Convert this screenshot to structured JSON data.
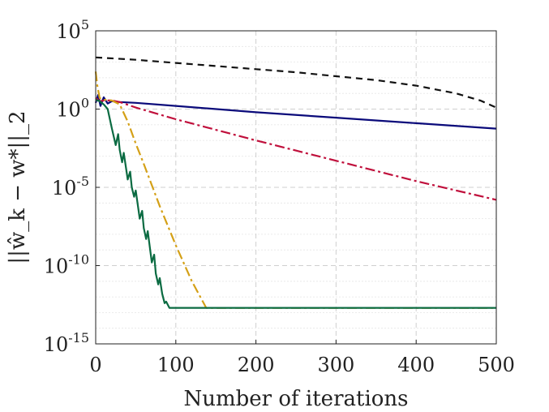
{
  "chart_data": {
    "type": "line",
    "xlabel": "Number of iterations",
    "ylabel": "||ŵ_k − w*||_2",
    "xlim": [
      0,
      500
    ],
    "ylim_exponent": [
      -15,
      5
    ],
    "yscale": "log",
    "grid": true,
    "x_ticks": [
      "0",
      "100",
      "200",
      "300",
      "400",
      "500"
    ],
    "y_ticks": [
      {
        "base": "10",
        "exp": "5",
        "value_exp": 5
      },
      {
        "base": "10",
        "exp": "0",
        "value_exp": 0
      },
      {
        "base": "10",
        "exp": "-5",
        "value_exp": -5
      },
      {
        "base": "10",
        "exp": "-10",
        "value_exp": -10
      },
      {
        "base": "10",
        "exp": "-15",
        "value_exp": -15
      }
    ],
    "series": [
      {
        "color": "#111111",
        "dash": "8,6",
        "x": [
          0,
          50,
          100,
          150,
          200,
          250,
          300,
          350,
          400,
          450,
          480,
          500
        ],
        "log10_y": [
          3.3,
          3.15,
          2.95,
          2.75,
          2.55,
          2.35,
          2.1,
          1.85,
          1.5,
          1.0,
          0.55,
          0.1
        ]
      },
      {
        "color": "#0a0a7a",
        "dash": "",
        "x": [
          0,
          3,
          6,
          10,
          15,
          20,
          30,
          50,
          100,
          200,
          300,
          400,
          500
        ],
        "log10_y": [
          0.4,
          0.9,
          0.2,
          0.75,
          0.35,
          0.5,
          0.45,
          0.4,
          0.2,
          -0.2,
          -0.55,
          -0.9,
          -1.25
        ]
      },
      {
        "color": "#c0103c",
        "dash": "12,4,3,4",
        "x": [
          0,
          5,
          10,
          20,
          30,
          50,
          100,
          200,
          300,
          400,
          500
        ],
        "log10_y": [
          0.7,
          0.5,
          0.55,
          0.55,
          0.45,
          0.1,
          -0.65,
          -2.0,
          -3.3,
          -4.6,
          -5.8
        ]
      },
      {
        "color": "#d4a017",
        "dash": "12,4,3,4",
        "x": [
          0,
          2,
          5,
          10,
          20,
          30,
          40,
          50,
          60,
          80,
          100,
          120,
          138,
          150,
          300,
          500
        ],
        "log10_y": [
          2.4,
          1.5,
          0.7,
          0.6,
          0.55,
          0.3,
          -0.8,
          -2.2,
          -3.5,
          -6.2,
          -8.7,
          -11.0,
          -12.7,
          -12.7,
          -12.7,
          -12.7
        ]
      },
      {
        "color": "#0b6b42",
        "dash": "",
        "x": [
          0,
          5,
          10,
          15,
          20,
          25,
          28,
          30,
          33,
          35,
          38,
          40,
          43,
          45,
          48,
          50,
          53,
          55,
          58,
          60,
          63,
          65,
          68,
          70,
          73,
          75,
          78,
          80,
          83,
          86,
          88,
          92,
          100,
          200,
          300,
          400,
          500
        ],
        "log10_y": [
          0.6,
          0.5,
          0.3,
          0.0,
          -1.2,
          -2.3,
          -1.6,
          -2.6,
          -3.4,
          -2.8,
          -3.8,
          -4.5,
          -4.0,
          -5.0,
          -5.6,
          -5.2,
          -6.3,
          -7.0,
          -6.5,
          -7.6,
          -8.3,
          -7.8,
          -9.0,
          -9.8,
          -9.3,
          -10.5,
          -11.2,
          -10.8,
          -11.8,
          -12.4,
          -12.3,
          -12.7,
          -12.7,
          -12.7,
          -12.7,
          -12.7,
          -12.7
        ]
      }
    ]
  }
}
